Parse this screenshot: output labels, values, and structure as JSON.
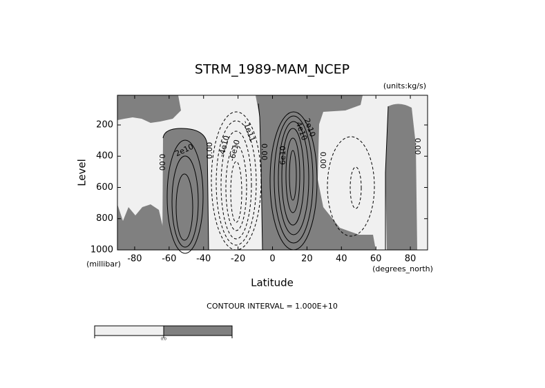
{
  "chart_data": {
    "type": "contour",
    "title": "STRM_1989-MAM_NCEP",
    "units": "(units:kg/s)",
    "x_label": "Latitude",
    "x_unit": "(degrees_north)",
    "y_label": "Level",
    "y_unit": "(millibar)",
    "note": "CONTOUR INTERVAL = 1.000E+10",
    "xlim": [
      -90,
      90
    ],
    "xticks": [
      -80,
      -60,
      -40,
      -20,
      0,
      20,
      40,
      60,
      80
    ],
    "ylim": [
      1000,
      10
    ],
    "yticks": [
      200,
      400,
      600,
      800,
      1000
    ],
    "contour_labels": [
      "0.00",
      "2e10",
      "0.00",
      "-4e10",
      "-6e10",
      "-1e11",
      "0.00",
      "6e10",
      "4e10",
      "2e10",
      "0.00",
      "0.00"
    ],
    "colorbar_labels": [
      "0.0"
    ],
    "colors": {
      "positive": "#808080",
      "negative": "#f0f0f0"
    }
  }
}
